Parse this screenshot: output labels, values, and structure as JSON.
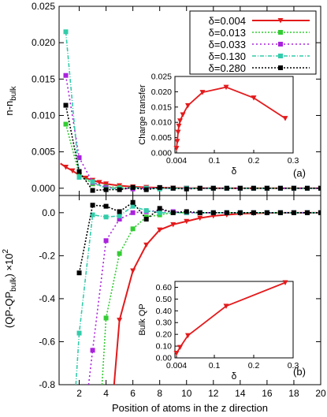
{
  "chart_data": [
    {
      "panel_label": "(a)",
      "type": "line",
      "ylabel": "n-n_bulk",
      "xlim": [
        0.5,
        20
      ],
      "ylim": [
        -0.001,
        0.025
      ],
      "yticks": [
        "0.000",
        "0.005",
        "0.010",
        "0.015",
        "0.020",
        "0.025"
      ],
      "series": [
        {
          "name": "δ=0.004",
          "color": "#e31a1c",
          "marker": "triangle",
          "x": [
            0.6,
            1,
            1.5,
            2,
            2.5,
            3,
            3.5,
            4,
            5,
            6,
            7,
            8,
            9,
            10,
            12,
            14,
            16,
            18,
            20
          ],
          "y": [
            0.0034,
            0.0029,
            0.0024,
            0.0018,
            0.0014,
            0.0011,
            0.0008,
            0.0006,
            0.00035,
            0.0002,
            0.00012,
            7e-05,
            4e-05,
            2e-05,
            0.0,
            0.0,
            0.0,
            0.0,
            0.0
          ]
        },
        {
          "name": "δ=0.013",
          "color": "#33cc33",
          "marker": "square",
          "x": [
            1,
            2,
            3,
            4,
            5,
            6,
            7,
            8,
            9,
            10,
            11,
            12,
            13,
            14,
            15,
            16,
            17,
            18,
            19,
            20
          ],
          "y": [
            0.0088,
            0.0019,
            0.0006,
            0.0002,
            0.0001,
            0.0,
            0.0,
            0.0,
            0.0,
            0.0,
            0.0,
            0.0,
            0.0,
            0.0,
            0.0,
            0.0,
            0.0,
            0.0,
            0.0,
            0.0
          ]
        },
        {
          "name": "δ=0.033",
          "color": "#aa22dd",
          "marker": "square",
          "x": [
            1,
            2,
            3,
            4,
            5,
            6,
            7,
            8,
            9,
            10,
            11,
            12,
            13,
            14,
            15,
            16,
            17,
            18,
            19,
            20
          ],
          "y": [
            0.0155,
            0.0042,
            0.0008,
            0.0001,
            0.0,
            -0.0001,
            0.0,
            0.0,
            0.0,
            0.0,
            0.0,
            0.0,
            0.0,
            0.0,
            0.0,
            0.0,
            0.0,
            0.0,
            0.0,
            0.0
          ]
        },
        {
          "name": "δ=0.130",
          "color": "#33ccaa",
          "marker": "square",
          "x": [
            1,
            2,
            3,
            4,
            5,
            6,
            7,
            8,
            9,
            10,
            11,
            12,
            13,
            14,
            15,
            16,
            17,
            18,
            19,
            20
          ],
          "y": [
            0.0215,
            0.0015,
            0.0009,
            -0.0001,
            0.0,
            0.0001,
            0.0,
            -0.0001,
            0.0,
            0.0,
            0.0,
            0.0,
            0.0,
            0.0,
            0.0,
            0.0,
            0.0,
            0.0,
            0.0,
            0.0
          ]
        },
        {
          "name": "δ=0.280",
          "color": "#000000",
          "marker": "square",
          "x": [
            1,
            2,
            3,
            4,
            5,
            6,
            7,
            8,
            9,
            10,
            11,
            12,
            13,
            14,
            15,
            16,
            17,
            18,
            19,
            20
          ],
          "y": [
            0.0114,
            0.0023,
            -0.0003,
            -0.0002,
            -0.0002,
            0.0001,
            -0.0002,
            0.0001,
            0.0,
            -0.0001,
            0.0,
            0.0,
            0.0,
            0.0,
            0.0,
            0.0,
            0.0,
            0.0,
            0.0,
            0.0
          ]
        }
      ],
      "legend": "top-right",
      "inset": {
        "type": "line",
        "ylabel": "Charge transfer",
        "xlabel": "δ",
        "xlim": [
          0,
          0.3
        ],
        "ylim": [
          0,
          0.025
        ],
        "xticks": [
          "0.004",
          "0.1",
          "0.2",
          "0.3"
        ],
        "yticks": [
          "0.000",
          "0.005",
          "0.010",
          "0.015",
          "0.020",
          "0.025"
        ],
        "color": "#e31a1c",
        "x": [
          0.004,
          0.006,
          0.008,
          0.01,
          0.013,
          0.02,
          0.033,
          0.07,
          0.13,
          0.2,
          0.28
        ],
        "y": [
          0.0015,
          0.0038,
          0.0068,
          0.0088,
          0.0105,
          0.0125,
          0.0155,
          0.0198,
          0.0215,
          0.018,
          0.0113
        ]
      }
    },
    {
      "panel_label": "(b)",
      "type": "line",
      "ylabel": "(QP-QP_bulk) ×10^2",
      "xlabel": "Position of atoms in the z direction",
      "xlim": [
        0.5,
        20
      ],
      "ylim": [
        -0.8,
        0.08
      ],
      "xticks": [
        "2",
        "4",
        "6",
        "8",
        "10",
        "12",
        "14",
        "16",
        "18",
        "20"
      ],
      "yticks": [
        "-0.8",
        "-0.6",
        "-0.4",
        "-0.2",
        "0.0"
      ],
      "series": [
        {
          "name": "δ=0.004",
          "color": "#e31a1c",
          "marker": "triangle",
          "x": [
            4.6,
            5,
            6,
            7,
            8,
            9,
            10,
            11,
            12,
            13,
            14,
            15,
            16,
            17,
            18,
            19,
            20
          ],
          "y": [
            -0.8,
            -0.5,
            -0.27,
            -0.15,
            -0.08,
            -0.055,
            -0.04,
            -0.025,
            -0.015,
            -0.01,
            -0.005,
            -0.003,
            -0.001,
            0.0,
            0.0,
            0.0,
            0.0
          ]
        },
        {
          "name": "δ=0.013",
          "color": "#33cc33",
          "marker": "square",
          "x": [
            3.7,
            4,
            5,
            6,
            7,
            8,
            9,
            10,
            11,
            12,
            13,
            14,
            15,
            16,
            17,
            18,
            19,
            20
          ],
          "y": [
            -0.8,
            -0.49,
            -0.19,
            -0.075,
            -0.02,
            -0.01,
            0.0,
            0.0,
            0.0,
            0.0,
            0.0,
            0.0,
            0.0,
            0.0,
            0.0,
            0.0,
            0.0,
            0.0
          ]
        },
        {
          "name": "δ=0.033",
          "color": "#aa22dd",
          "marker": "square",
          "x": [
            2.7,
            3,
            4,
            5,
            6,
            7,
            8,
            9,
            10,
            11,
            12,
            13,
            14,
            15,
            16,
            17,
            18,
            19,
            20
          ],
          "y": [
            -0.8,
            -0.64,
            -0.13,
            -0.03,
            0.0,
            0.005,
            0.01,
            0.005,
            0.0,
            0.0,
            0.0,
            0.0,
            0.0,
            0.0,
            0.0,
            0.0,
            0.0,
            0.0,
            0.0
          ]
        },
        {
          "name": "δ=0.130",
          "color": "#33ccaa",
          "marker": "square",
          "x": [
            1.75,
            2,
            3,
            4,
            5,
            6,
            7,
            8,
            9,
            10,
            11,
            12,
            13,
            14,
            15,
            16,
            17,
            18,
            19,
            20
          ],
          "y": [
            -0.8,
            -0.56,
            -0.01,
            -0.02,
            -0.015,
            0.03,
            0.01,
            0.0,
            0.0,
            0.0,
            0.0,
            0.0,
            0.0,
            0.0,
            0.0,
            0.0,
            0.0,
            0.0,
            0.0,
            0.0
          ]
        },
        {
          "name": "δ=0.280",
          "color": "#000000",
          "marker": "square",
          "x": [
            2,
            3,
            4,
            5,
            6,
            7,
            8,
            9,
            10,
            11,
            12,
            13,
            14,
            15,
            16,
            17,
            18,
            19,
            20
          ],
          "y": [
            -0.28,
            0.035,
            0.03,
            0.005,
            0.048,
            -0.03,
            0.02,
            0.0,
            0.005,
            0.0,
            0.0,
            0.0,
            0.0,
            0.0,
            0.0,
            0.0,
            0.0,
            0.0,
            0.0
          ]
        }
      ],
      "inset": {
        "type": "line",
        "ylabel": "Bulk QP",
        "xlabel": "δ",
        "xlim": [
          0,
          0.3
        ],
        "ylim": [
          0,
          0.65
        ],
        "xticks": [
          "0.004",
          "0.1",
          "0.2",
          "0.3"
        ],
        "yticks": [
          "0.00",
          "0.10",
          "0.20",
          "0.30",
          "0.40",
          "0.50",
          "0.60"
        ],
        "color": "#e31a1c",
        "x": [
          0.004,
          0.013,
          0.033,
          0.13,
          0.28
        ],
        "y": [
          0.04,
          0.09,
          0.19,
          0.44,
          0.64
        ]
      }
    }
  ]
}
